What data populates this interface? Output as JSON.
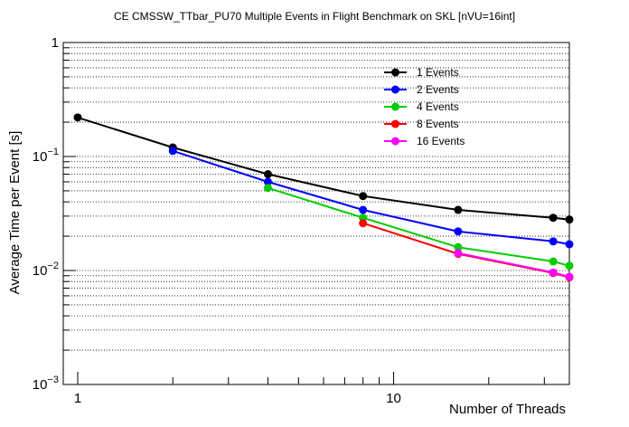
{
  "chart_data": {
    "type": "line",
    "title": "CE CMSSW_TTbar_PU70 Multiple Events in Flight Benchmark on SKL [nVU=16int]",
    "xlabel": "Number of Threads",
    "ylabel": "Average Time per Event [s]",
    "x_scale": "log",
    "y_scale": "log",
    "xlim": [
      0.9,
      36
    ],
    "ylim": [
      0.001,
      1
    ],
    "x_tick_labels": [
      {
        "value": 1,
        "label": "1"
      },
      {
        "value": 10,
        "label": "10"
      }
    ],
    "y_tick_labels": [
      {
        "value": 1,
        "base": "1",
        "exp": ""
      },
      {
        "value": 0.1,
        "base": "10",
        "exp": "−1"
      },
      {
        "value": 0.01,
        "base": "10",
        "exp": "−2"
      },
      {
        "value": 0.001,
        "base": "10",
        "exp": "−3"
      }
    ],
    "grid": "horizontal dotted",
    "legend_position": "top-right",
    "series": [
      {
        "name": "1 Events",
        "color": "#000000",
        "x": [
          1,
          2,
          4,
          8,
          16,
          32,
          36
        ],
        "y": [
          0.22,
          0.12,
          0.07,
          0.045,
          0.034,
          0.029,
          0.028
        ]
      },
      {
        "name": "2 Events",
        "color": "#0000ff",
        "x": [
          2,
          4,
          8,
          16,
          32,
          36
        ],
        "y": [
          0.112,
          0.06,
          0.034,
          0.022,
          0.018,
          0.017
        ]
      },
      {
        "name": "4 Events",
        "color": "#00cc00",
        "x": [
          4,
          8,
          16,
          32,
          36
        ],
        "y": [
          0.053,
          0.029,
          0.016,
          0.012,
          0.011
        ]
      },
      {
        "name": "8 Events",
        "color": "#ff0000",
        "x": [
          8,
          16,
          32,
          36
        ],
        "y": [
          0.026,
          0.014,
          0.0095,
          0.0087
        ]
      },
      {
        "name": "16 Events",
        "color": "#ff00ff",
        "x": [
          16,
          32,
          36
        ],
        "y": [
          0.0142,
          0.0096,
          0.0088
        ]
      }
    ]
  }
}
